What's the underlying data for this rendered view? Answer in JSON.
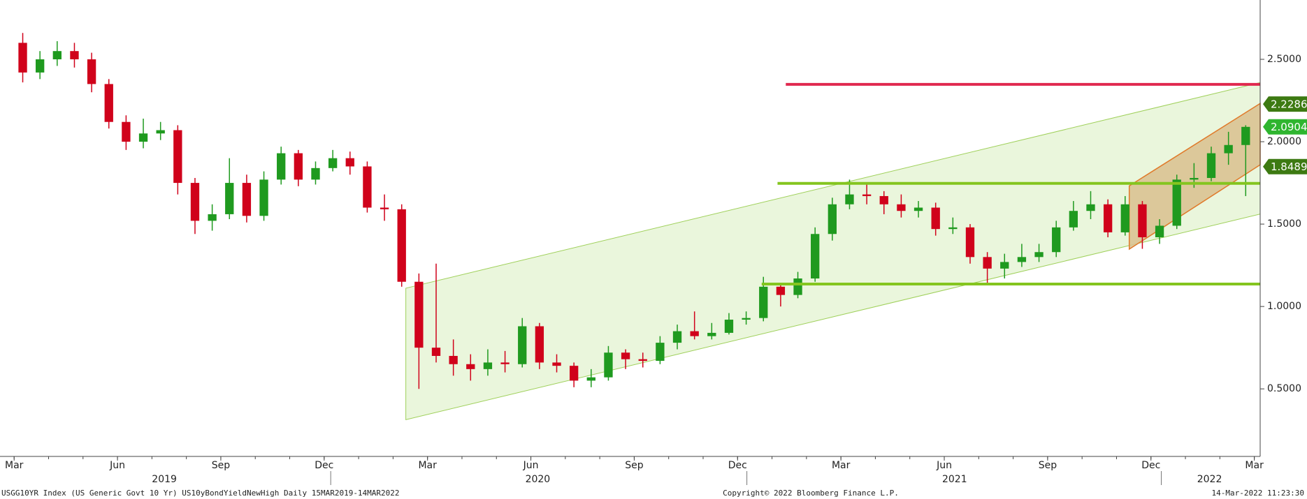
{
  "chart_data": {
    "type": "candlestick",
    "footer_left": "USGG10YR Index (US Generic Govt 10 Yr) US10yBondYieldNewHigh  Daily 15MAR2019-14MAR2022",
    "footer_center": "Copyright© 2022 Bloomberg Finance L.P.",
    "footer_right": "14-Mar-2022 11:23:30",
    "x": [
      0.25,
      0.75,
      1.25,
      1.75,
      2.25,
      2.75,
      3.25,
      3.75,
      4.25,
      4.75,
      5.25,
      5.75,
      6.25,
      6.75,
      7.25,
      7.75,
      8.25,
      8.75,
      9.25,
      9.75,
      10.25,
      10.75,
      11.25,
      11.75,
      12.25,
      12.75,
      13.25,
      13.75,
      14.25,
      14.75,
      15.25,
      15.75,
      16.25,
      16.75,
      17.25,
      17.75,
      18.25,
      18.75,
      19.25,
      19.75,
      20.25,
      20.75,
      21.25,
      21.75,
      22.25,
      22.75,
      23.25,
      23.75,
      24.25,
      24.75,
      25.25,
      25.75,
      26.25,
      26.75,
      27.25,
      27.75,
      28.25,
      28.75,
      29.25,
      29.75,
      30.25,
      30.75,
      31.25,
      31.75,
      32.25,
      32.75,
      33.25,
      33.75,
      34.25,
      34.75,
      35.25,
      35.75
    ],
    "open": [
      2.6,
      2.42,
      2.5,
      2.55,
      2.5,
      2.35,
      2.12,
      2.0,
      2.05,
      2.07,
      1.75,
      1.52,
      1.56,
      1.75,
      1.55,
      1.77,
      1.93,
      1.77,
      1.84,
      1.9,
      1.85,
      1.6,
      1.59,
      1.15,
      0.75,
      0.7,
      0.65,
      0.62,
      0.66,
      0.65,
      0.88,
      0.66,
      0.64,
      0.55,
      0.57,
      0.72,
      0.68,
      0.67,
      0.78,
      0.85,
      0.82,
      0.84,
      0.92,
      0.93,
      1.12,
      1.07,
      1.17,
      1.44,
      1.62,
      1.68,
      1.67,
      1.62,
      1.58,
      1.6,
      1.47,
      1.48,
      1.3,
      1.23,
      1.27,
      1.3,
      1.33,
      1.48,
      1.58,
      1.62,
      1.45,
      1.62,
      1.42,
      1.49,
      1.77,
      1.78,
      1.93,
      1.98
    ],
    "high": [
      2.66,
      2.55,
      2.61,
      2.6,
      2.54,
      2.38,
      2.16,
      2.14,
      2.12,
      2.1,
      1.78,
      1.62,
      1.9,
      1.8,
      1.82,
      1.97,
      1.95,
      1.88,
      1.95,
      1.94,
      1.88,
      1.68,
      1.62,
      1.2,
      1.26,
      0.8,
      0.71,
      0.74,
      0.73,
      0.93,
      0.9,
      0.71,
      0.66,
      0.62,
      0.76,
      0.74,
      0.72,
      0.82,
      0.89,
      0.97,
      0.9,
      0.96,
      0.97,
      1.18,
      1.14,
      1.21,
      1.48,
      1.66,
      1.77,
      1.74,
      1.7,
      1.68,
      1.64,
      1.63,
      1.54,
      1.5,
      1.33,
      1.32,
      1.38,
      1.38,
      1.52,
      1.64,
      1.7,
      1.65,
      1.67,
      1.64,
      1.53,
      1.8,
      1.87,
      1.97,
      2.06,
      2.1
    ],
    "low": [
      2.36,
      2.38,
      2.46,
      2.45,
      2.3,
      2.08,
      1.95,
      1.96,
      2.01,
      1.68,
      1.44,
      1.46,
      1.53,
      1.51,
      1.52,
      1.74,
      1.73,
      1.74,
      1.82,
      1.8,
      1.57,
      1.52,
      1.12,
      0.5,
      0.66,
      0.58,
      0.55,
      0.58,
      0.6,
      0.63,
      0.62,
      0.6,
      0.51,
      0.51,
      0.55,
      0.62,
      0.63,
      0.65,
      0.74,
      0.8,
      0.8,
      0.83,
      0.89,
      0.91,
      1.0,
      1.05,
      1.15,
      1.4,
      1.59,
      1.62,
      1.56,
      1.54,
      1.54,
      1.43,
      1.44,
      1.26,
      1.13,
      1.17,
      1.24,
      1.27,
      1.3,
      1.46,
      1.53,
      1.42,
      1.43,
      1.35,
      1.38,
      1.47,
      1.72,
      1.76,
      1.86,
      1.67
    ],
    "close": [
      2.42,
      2.5,
      2.55,
      2.5,
      2.35,
      2.12,
      2.0,
      2.05,
      2.07,
      1.75,
      1.52,
      1.56,
      1.75,
      1.55,
      1.77,
      1.93,
      1.77,
      1.84,
      1.9,
      1.85,
      1.6,
      1.59,
      1.15,
      0.75,
      0.7,
      0.65,
      0.62,
      0.66,
      0.65,
      0.88,
      0.66,
      0.64,
      0.55,
      0.57,
      0.72,
      0.68,
      0.67,
      0.78,
      0.85,
      0.82,
      0.84,
      0.92,
      0.93,
      1.12,
      1.07,
      1.17,
      1.44,
      1.62,
      1.68,
      1.67,
      1.62,
      1.58,
      1.6,
      1.47,
      1.48,
      1.3,
      1.23,
      1.27,
      1.3,
      1.33,
      1.48,
      1.58,
      1.62,
      1.45,
      1.62,
      1.42,
      1.49,
      1.77,
      1.78,
      1.93,
      1.98,
      2.09
    ],
    "up_color": "#1f9a1f",
    "down_color": "#d0021b",
    "xlim": [
      -0.41,
      36.17
    ],
    "xticks": [
      {
        "value": 0,
        "label": "Mar"
      },
      {
        "value": 3,
        "label": "Jun"
      },
      {
        "value": 6,
        "label": "Sep"
      },
      {
        "value": 9,
        "label": "Dec"
      },
      {
        "value": 12,
        "label": "Mar"
      },
      {
        "value": 15,
        "label": "Jun"
      },
      {
        "value": 18,
        "label": "Sep"
      },
      {
        "value": 21,
        "label": "Dec"
      },
      {
        "value": 24,
        "label": "Mar"
      },
      {
        "value": 27,
        "label": "Jun"
      },
      {
        "value": 30,
        "label": "Sep"
      },
      {
        "value": 33,
        "label": "Dec"
      },
      {
        "value": 36,
        "label": "Mar"
      }
    ],
    "year_labels": [
      {
        "value": 4.36,
        "label": "2019"
      },
      {
        "value": 15.2,
        "label": "2020"
      },
      {
        "value": 27.3,
        "label": "2021"
      },
      {
        "value": 34.7,
        "label": "2022"
      }
    ],
    "year_boundaries": [
      9.19,
      21.27,
      33.3
    ],
    "ylim": [
      0.09,
      2.86
    ],
    "yticks": [
      {
        "value": 0.5,
        "label": "0.5000"
      },
      {
        "value": 1.0,
        "label": "1.0000"
      },
      {
        "value": 1.5,
        "label": "1.5000"
      },
      {
        "value": 2.0,
        "label": "2.0000"
      },
      {
        "value": 2.5,
        "label": "2.5000"
      }
    ],
    "channels": [
      {
        "x": [
          11.37,
          36.17,
          36.17,
          11.37
        ],
        "y": [
          1.111,
          2.359,
          1.561,
          0.313
        ],
        "color": "#9fd05a",
        "fill": "#eaf6dc"
      },
      {
        "x": [
          32.37,
          36.17,
          36.17,
          32.37
        ],
        "y": [
          1.732,
          2.232,
          1.86,
          1.348
        ],
        "color": "#e07a2a",
        "fill": "#d9c08e"
      }
    ],
    "levels": [
      {
        "x0": 22.4,
        "y": 2.348,
        "color": "#e0284f"
      },
      {
        "x0": 22.16,
        "y": 1.747,
        "color": "#84c51f"
      },
      {
        "x0": 21.7,
        "y": 1.136,
        "color": "#84c51f"
      }
    ],
    "price_tags": {
      "values": [
        2.2286,
        2.0904,
        1.8489
      ],
      "colors": [
        "#3d7a12",
        "#2fb52f",
        "#3d7a12"
      ]
    }
  }
}
